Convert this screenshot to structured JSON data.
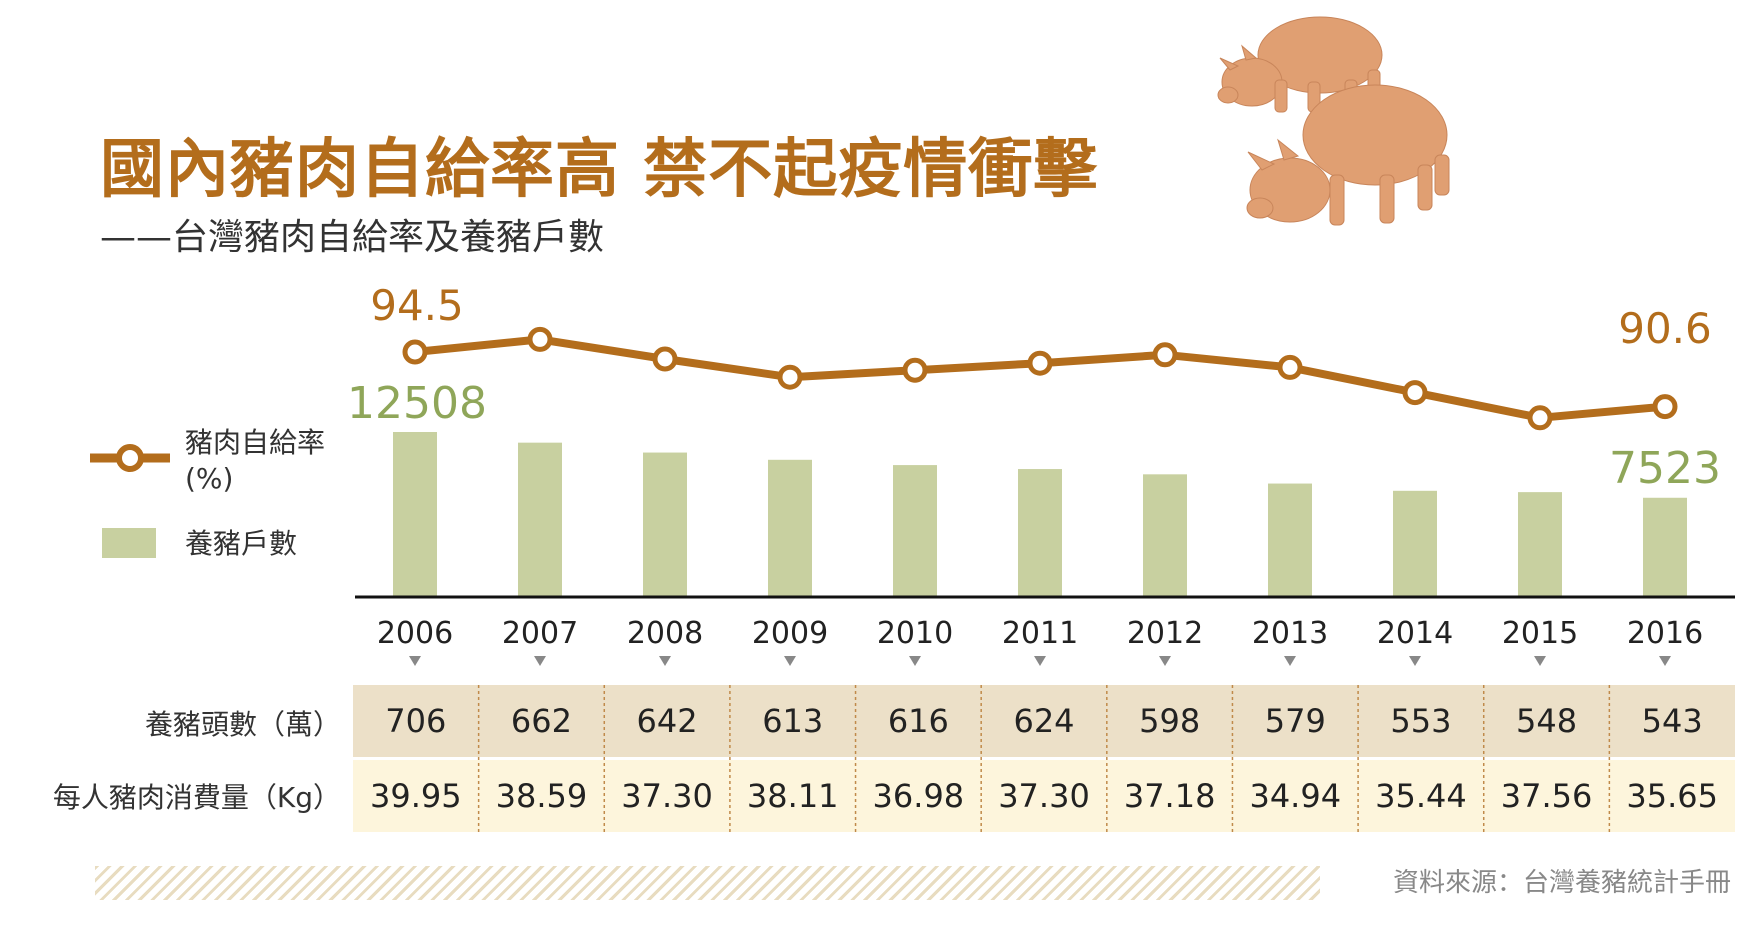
{
  "title": "國內豬肉自給率高  禁不起疫情衝擊",
  "subtitle": "——台灣豬肉自給率及養豬戶數",
  "legend": {
    "line": "豬肉自給率",
    "line_unit": "(%)",
    "bar": "養豬戶數"
  },
  "rows": {
    "heads_label": "養豬頭數（萬）",
    "consumption_label": "每人豬肉消費量（Kg）"
  },
  "source": "資料來源：台灣養豬統計手冊",
  "colors": {
    "line": "#b36d1c",
    "bar": "#c8d0a0",
    "row1": "#ece0c8",
    "row2": "#fdf5dc",
    "accent_green": "#8fa659"
  },
  "chart_data": {
    "type": "bar",
    "categories": [
      "2006",
      "2007",
      "2008",
      "2009",
      "2010",
      "2011",
      "2012",
      "2013",
      "2014",
      "2015",
      "2016"
    ],
    "series": [
      {
        "name": "養豬戶數",
        "type": "bar",
        "values": [
          12508,
          11700,
          10950,
          10400,
          10000,
          9700,
          9300,
          8600,
          8050,
          7950,
          7523
        ],
        "labeled": {
          "first": "12508",
          "last": "7523"
        }
      },
      {
        "name": "豬肉自給率",
        "type": "line",
        "values": [
          94.5,
          95.4,
          94.0,
          92.7,
          93.2,
          93.7,
          94.3,
          93.4,
          91.6,
          89.8,
          90.6
        ],
        "labeled": {
          "first": "94.5",
          "last": "90.6"
        }
      }
    ],
    "table": {
      "heads": [
        "706",
        "662",
        "642",
        "613",
        "616",
        "624",
        "598",
        "579",
        "553",
        "548",
        "543"
      ],
      "consumption": [
        "39.95",
        "38.59",
        "37.30",
        "38.11",
        "36.98",
        "37.30",
        "37.18",
        "34.94",
        "35.44",
        "37.56",
        "35.65"
      ]
    }
  }
}
